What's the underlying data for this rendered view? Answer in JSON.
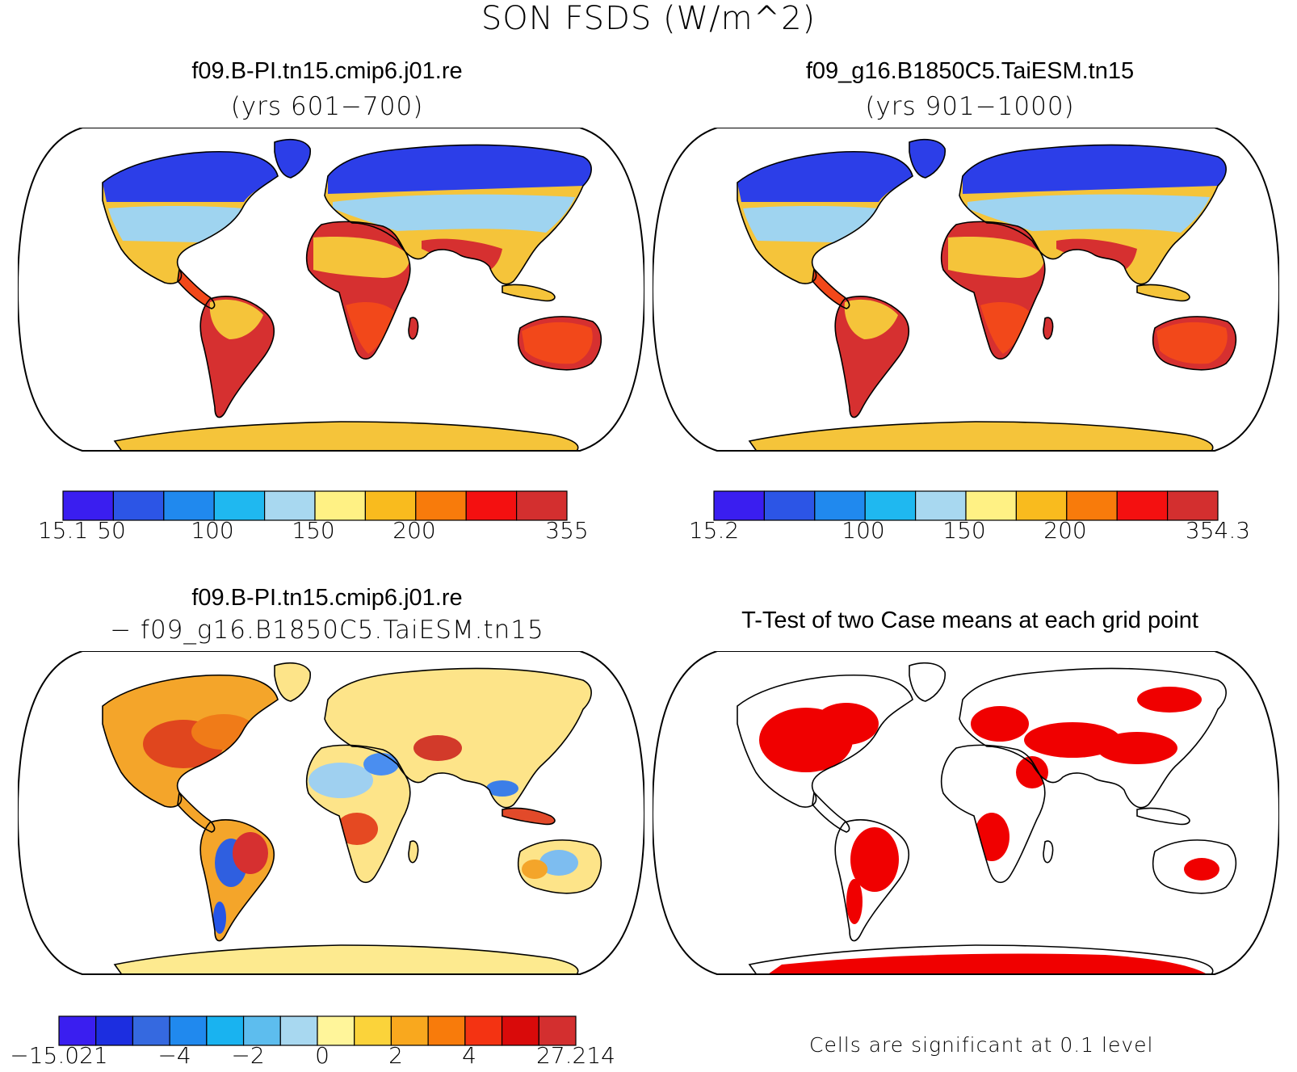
{
  "figure": {
    "title": "SON FSDS (W/m^2)"
  },
  "panels": [
    {
      "id": "case1",
      "title": "f09.B-PI.tn15.cmip6.j01.re",
      "subtitle": "(yrs 601−700)",
      "colorbar": {
        "colors": [
          "#3a1ef0",
          "#2c55e6",
          "#2089ee",
          "#1fb8f0",
          "#a8d8f0",
          "#fff184",
          "#f9bb1e",
          "#f87b0b",
          "#f41010",
          "#d32f2f"
        ],
        "tick_labels": [
          "15.1",
          "50",
          "100",
          "150",
          "200",
          "355"
        ]
      }
    },
    {
      "id": "case2",
      "title": "f09_g16.B1850C5.TaiESM.tn15",
      "subtitle": "(yrs 901−1000)",
      "colorbar": {
        "colors": [
          "#3a1ef0",
          "#2c55e6",
          "#2089ee",
          "#1fb8f0",
          "#a8d8f0",
          "#fff184",
          "#f9bb1e",
          "#f87b0b",
          "#f41010",
          "#d32f2f"
        ],
        "tick_labels": [
          "15.2",
          "100",
          "150",
          "200",
          "354.3"
        ]
      }
    },
    {
      "id": "diff",
      "title": "f09.B-PI.tn15.cmip6.j01.re",
      "subtitle": "− f09_g16.B1850C5.TaiESM.tn15",
      "colorbar": {
        "colors": [
          "#3a1ef0",
          "#1c2ee0",
          "#3569e0",
          "#2089ee",
          "#19b3f0",
          "#5dbdee",
          "#a8d8f0",
          "#fff59a",
          "#fbd33a",
          "#f9a81e",
          "#f87b0b",
          "#f43312",
          "#d90a0a",
          "#d32f2f"
        ],
        "tick_labels": [
          "−15.021",
          "−4",
          "−2",
          "0",
          "2",
          "4",
          "27.214"
        ]
      }
    },
    {
      "id": "ttest",
      "title": "T-Test of two Case means at each grid point",
      "note": "Cells are significant at 0.1 level",
      "significant_color": "#f00000"
    }
  ],
  "chart_data": {
    "type": "heatmap",
    "title": "SON FSDS (W/m^2)",
    "panels": [
      {
        "name": "f09.B-PI.tn15.cmip6.j01.re (yrs 601−700)",
        "range": [
          15.1,
          355
        ],
        "colorbar_ticks": [
          50,
          100,
          150,
          200
        ]
      },
      {
        "name": "f09_g16.B1850C5.TaiESM.tn15 (yrs 901−1000)",
        "range": [
          15.2,
          354.3
        ],
        "colorbar_ticks": [
          100,
          150,
          200
        ]
      },
      {
        "name": "f09.B-PI.tn15.cmip6.j01.re − f09_g16.B1850C5.TaiESM.tn15",
        "range": [
          -15.021,
          27.214
        ],
        "colorbar_ticks": [
          -4,
          -2,
          0,
          2,
          4
        ]
      },
      {
        "name": "T-Test of two Case means at each grid point",
        "significance_level": 0.1
      }
    ]
  }
}
